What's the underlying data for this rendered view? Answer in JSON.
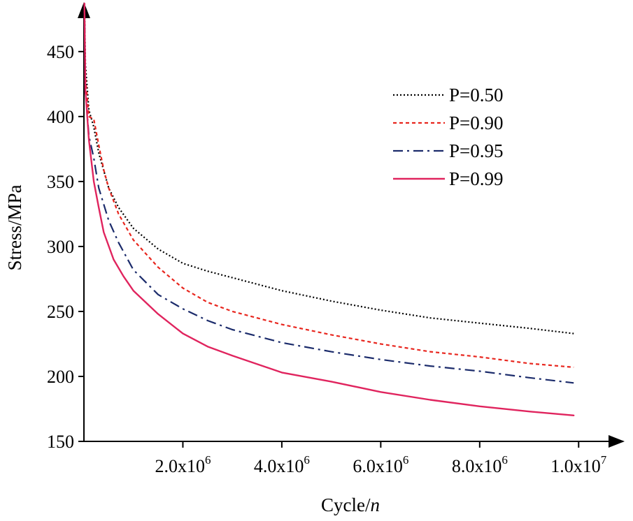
{
  "chart_data": {
    "type": "line",
    "title": "",
    "xlabel": "Cycle/",
    "xlabel_var": "n",
    "ylabel": "Stress/MPa",
    "xlim": [
      0,
      11000000
    ],
    "ylim": [
      150,
      487
    ],
    "xticks": [
      {
        "value": 2000000,
        "mantissa": "2.0x10",
        "exp": "6"
      },
      {
        "value": 4000000,
        "mantissa": "4.0x10",
        "exp": "6"
      },
      {
        "value": 6000000,
        "mantissa": "6.0x10",
        "exp": "6"
      },
      {
        "value": 8000000,
        "mantissa": "8.0x10",
        "exp": "6"
      },
      {
        "value": 10000000,
        "mantissa": "1.0x10",
        "exp": "7"
      }
    ],
    "yticks": [
      150,
      200,
      250,
      300,
      350,
      400,
      450
    ],
    "legend_position": "top-right",
    "series": [
      {
        "name": "P=0.50",
        "color": "#000000",
        "dash": "dotted",
        "points": [
          [
            10000,
            487
          ],
          [
            30000,
            440
          ],
          [
            100000,
            405
          ],
          [
            200000,
            392
          ],
          [
            300000,
            372
          ],
          [
            500000,
            345
          ],
          [
            700000,
            330
          ],
          [
            1000000,
            314
          ],
          [
            1500000,
            298
          ],
          [
            2000000,
            287
          ],
          [
            2500000,
            281
          ],
          [
            3000000,
            276
          ],
          [
            4000000,
            266
          ],
          [
            5000000,
            258
          ],
          [
            6000000,
            251
          ],
          [
            7000000,
            245
          ],
          [
            8000000,
            241
          ],
          [
            9000000,
            237
          ],
          [
            9900000,
            233
          ]
        ]
      },
      {
        "name": "P=0.90",
        "color": "#e8261e",
        "dash": "dashed",
        "points": [
          [
            10000,
            487
          ],
          [
            30000,
            430
          ],
          [
            100000,
            400
          ],
          [
            200000,
            398
          ],
          [
            300000,
            378
          ],
          [
            400000,
            359
          ],
          [
            500000,
            345
          ],
          [
            700000,
            325
          ],
          [
            1000000,
            305
          ],
          [
            1500000,
            284
          ],
          [
            2000000,
            268
          ],
          [
            2500000,
            257
          ],
          [
            3000000,
            250
          ],
          [
            4000000,
            240
          ],
          [
            5000000,
            232
          ],
          [
            6000000,
            225
          ],
          [
            7000000,
            219
          ],
          [
            8000000,
            215
          ],
          [
            9000000,
            210
          ],
          [
            9900000,
            207
          ]
        ]
      },
      {
        "name": "P=0.95",
        "color": "#1b2b6b",
        "dash": "dashdot",
        "points": [
          [
            10000,
            487
          ],
          [
            30000,
            420
          ],
          [
            100000,
            385
          ],
          [
            200000,
            368
          ],
          [
            300000,
            345
          ],
          [
            500000,
            320
          ],
          [
            700000,
            303
          ],
          [
            1000000,
            282
          ],
          [
            1500000,
            263
          ],
          [
            2000000,
            252
          ],
          [
            2500000,
            243
          ],
          [
            3000000,
            236
          ],
          [
            4000000,
            226
          ],
          [
            5000000,
            219
          ],
          [
            6000000,
            213
          ],
          [
            7000000,
            208
          ],
          [
            8000000,
            204
          ],
          [
            9000000,
            199
          ],
          [
            9900000,
            195
          ]
        ]
      },
      {
        "name": "P=0.99",
        "color": "#e0245e",
        "dash": "solid",
        "points": [
          [
            10000,
            487
          ],
          [
            30000,
            420
          ],
          [
            100000,
            382
          ],
          [
            200000,
            350
          ],
          [
            300000,
            330
          ],
          [
            400000,
            311
          ],
          [
            600000,
            290
          ],
          [
            800000,
            277
          ],
          [
            1000000,
            266
          ],
          [
            1500000,
            248
          ],
          [
            2000000,
            233
          ],
          [
            2500000,
            223
          ],
          [
            3000000,
            216
          ],
          [
            4000000,
            203
          ],
          [
            5000000,
            196
          ],
          [
            6000000,
            188
          ],
          [
            7000000,
            182
          ],
          [
            8000000,
            177
          ],
          [
            9000000,
            173
          ],
          [
            9900000,
            170
          ]
        ]
      }
    ]
  }
}
